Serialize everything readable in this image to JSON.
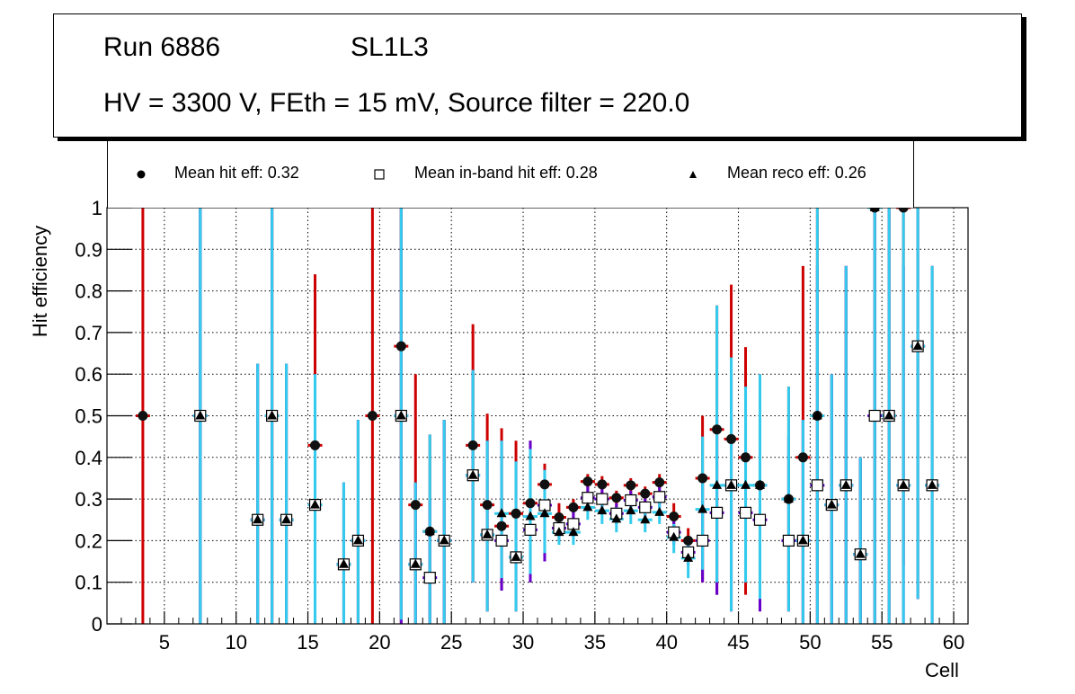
{
  "title": {
    "run": "Run 6886",
    "layer": "SL1L3",
    "conditions": "HV = 3300 V, FEth = 15 mV, Source filter = 220.0"
  },
  "legend": [
    {
      "name": "Mean hit  eff: 0.32",
      "marker": "filled-circle"
    },
    {
      "name": "Mean in-band hit eff: 0.28",
      "marker": "open-square"
    },
    {
      "name": "Mean reco eff: 0.26",
      "marker": "filled-triangle"
    }
  ],
  "colors": {
    "hit_error": "#cc0000",
    "inband_error": "#6600cc",
    "reco_error": "#33ccee",
    "marker": "#000000"
  },
  "chart_data": {
    "type": "scatter",
    "title": "Run 6886  SL1L3 — HV = 3300 V, FEth = 15 mV, Source filter = 220.0",
    "xlabel": "Cell",
    "ylabel": "Hit efficiency",
    "xlim": [
      1,
      61
    ],
    "ylim": [
      0,
      1
    ],
    "xticks": [
      5,
      10,
      15,
      20,
      25,
      30,
      35,
      40,
      45,
      50,
      55,
      60
    ],
    "yticks": [
      0,
      0.1,
      0.2,
      0.3,
      0.4,
      0.5,
      0.6,
      0.7,
      0.8,
      0.9,
      1
    ],
    "ytick_labels": [
      "0",
      "0.1",
      "0.2",
      "0.3",
      "0.4",
      "0.5",
      "0.6",
      "0.7",
      "0.8",
      "0.9",
      "1"
    ],
    "grid": true,
    "legend_position": "top",
    "series": [
      {
        "name": "Mean hit  eff: 0.32",
        "marker": "circle",
        "error_color": "#cc0000",
        "points": [
          {
            "x": 3.5,
            "y": 0.5,
            "lo": 0,
            "hi": 1
          },
          {
            "x": 7.5,
            "y": 0.5,
            "lo": 0,
            "hi": 1
          },
          {
            "x": 11.5,
            "y": 0.25,
            "lo": 0,
            "hi": 0.625
          },
          {
            "x": 12.5,
            "y": 0.5,
            "lo": 0,
            "hi": 1
          },
          {
            "x": 13.5,
            "y": 0.25,
            "lo": 0,
            "hi": 0.625
          },
          {
            "x": 15.5,
            "y": 0.429,
            "lo": 0.1,
            "hi": 0.84
          },
          {
            "x": 17.5,
            "y": 0.143,
            "lo": 0,
            "hi": 0.34
          },
          {
            "x": 18.5,
            "y": 0.2,
            "lo": 0,
            "hi": 0.49
          },
          {
            "x": 19.5,
            "y": 0.5,
            "lo": 0,
            "hi": 1
          },
          {
            "x": 21.5,
            "y": 0.667,
            "lo": 0,
            "hi": 1
          },
          {
            "x": 22.5,
            "y": 0.286,
            "lo": 0,
            "hi": 0.6
          },
          {
            "x": 23.5,
            "y": 0.222,
            "lo": 0,
            "hi": 0.455
          },
          {
            "x": 24.5,
            "y": 0.2,
            "lo": 0,
            "hi": 0.49
          },
          {
            "x": 26.5,
            "y": 0.429,
            "lo": 0.1,
            "hi": 0.72
          },
          {
            "x": 27.5,
            "y": 0.286,
            "lo": 0.03,
            "hi": 0.505
          },
          {
            "x": 28.5,
            "y": 0.235,
            "lo": 0.08,
            "hi": 0.47
          },
          {
            "x": 29.5,
            "y": 0.265,
            "lo": 0.03,
            "hi": 0.44
          },
          {
            "x": 30.5,
            "y": 0.29,
            "lo": 0.1,
            "hi": 0.44
          },
          {
            "x": 31.5,
            "y": 0.335,
            "lo": 0.15,
            "hi": 0.385
          },
          {
            "x": 32.5,
            "y": 0.256,
            "lo": 0.2,
            "hi": 0.29
          },
          {
            "x": 33.5,
            "y": 0.28,
            "lo": 0.24,
            "hi": 0.3
          },
          {
            "x": 34.5,
            "y": 0.342,
            "lo": 0.31,
            "hi": 0.36
          },
          {
            "x": 35.5,
            "y": 0.335,
            "lo": 0.3,
            "hi": 0.355
          },
          {
            "x": 36.5,
            "y": 0.303,
            "lo": 0.27,
            "hi": 0.32
          },
          {
            "x": 37.5,
            "y": 0.333,
            "lo": 0.3,
            "hi": 0.35
          },
          {
            "x": 38.5,
            "y": 0.313,
            "lo": 0.28,
            "hi": 0.33
          },
          {
            "x": 39.5,
            "y": 0.34,
            "lo": 0.31,
            "hi": 0.36
          },
          {
            "x": 40.5,
            "y": 0.258,
            "lo": 0.22,
            "hi": 0.29
          },
          {
            "x": 41.5,
            "y": 0.2,
            "lo": 0.15,
            "hi": 0.23
          },
          {
            "x": 42.5,
            "y": 0.35,
            "lo": 0.1,
            "hi": 0.5
          },
          {
            "x": 43.5,
            "y": 0.467,
            "lo": 0.07,
            "hi": 0.765
          },
          {
            "x": 44.5,
            "y": 0.444,
            "lo": 0.03,
            "hi": 0.815
          },
          {
            "x": 45.5,
            "y": 0.4,
            "lo": 0.07,
            "hi": 0.665
          },
          {
            "x": 46.5,
            "y": 0.333,
            "lo": 0.03,
            "hi": 0.6
          },
          {
            "x": 48.5,
            "y": 0.3,
            "lo": 0.03,
            "hi": 0.57
          },
          {
            "x": 49.5,
            "y": 0.4,
            "lo": 0,
            "hi": 0.86
          },
          {
            "x": 50.5,
            "y": 0.5,
            "lo": 0,
            "hi": 1
          },
          {
            "x": 51.5,
            "y": 0.286,
            "lo": 0,
            "hi": 0.6
          },
          {
            "x": 52.5,
            "y": 0.333,
            "lo": 0,
            "hi": 0.86
          },
          {
            "x": 53.5,
            "y": 0.167,
            "lo": 0,
            "hi": 0.4
          },
          {
            "x": 54.5,
            "y": 1.0,
            "lo": 0,
            "hi": 1
          },
          {
            "x": 55.5,
            "y": 0.5,
            "lo": 0,
            "hi": 1
          },
          {
            "x": 56.5,
            "y": 1.0,
            "lo": 0.14,
            "hi": 1
          },
          {
            "x": 57.5,
            "y": 0.667,
            "lo": 0.06,
            "hi": 1
          },
          {
            "x": 58.5,
            "y": 0.333,
            "lo": 0,
            "hi": 0.86
          }
        ]
      },
      {
        "name": "Mean in-band hit eff: 0.28",
        "marker": "square",
        "error_color": "#6600cc",
        "points": [
          {
            "x": 7.5,
            "y": 0.5,
            "lo": 0,
            "hi": 1
          },
          {
            "x": 11.5,
            "y": 0.25,
            "lo": 0,
            "hi": 0.625
          },
          {
            "x": 12.5,
            "y": 0.5,
            "lo": 0,
            "hi": 1
          },
          {
            "x": 13.5,
            "y": 0.25,
            "lo": 0,
            "hi": 0.625
          },
          {
            "x": 15.5,
            "y": 0.286,
            "lo": 0,
            "hi": 0.6
          },
          {
            "x": 17.5,
            "y": 0.143,
            "lo": 0,
            "hi": 0.34
          },
          {
            "x": 18.5,
            "y": 0.2,
            "lo": 0,
            "hi": 0.49
          },
          {
            "x": 21.5,
            "y": 0.5,
            "lo": 0,
            "hi": 1
          },
          {
            "x": 22.5,
            "y": 0.143,
            "lo": 0,
            "hi": 0.34
          },
          {
            "x": 23.5,
            "y": 0.111,
            "lo": 0,
            "hi": 0.3
          },
          {
            "x": 24.5,
            "y": 0.2,
            "lo": 0,
            "hi": 0.49
          },
          {
            "x": 26.5,
            "y": 0.357,
            "lo": 0.1,
            "hi": 0.61
          },
          {
            "x": 27.5,
            "y": 0.214,
            "lo": 0.03,
            "hi": 0.44
          },
          {
            "x": 28.5,
            "y": 0.2,
            "lo": 0.08,
            "hi": 0.44
          },
          {
            "x": 29.5,
            "y": 0.16,
            "lo": 0.03,
            "hi": 0.39
          },
          {
            "x": 30.5,
            "y": 0.226,
            "lo": 0.1,
            "hi": 0.44
          },
          {
            "x": 31.5,
            "y": 0.285,
            "lo": 0.15,
            "hi": 0.37
          },
          {
            "x": 32.5,
            "y": 0.23,
            "lo": 0.2,
            "hi": 0.26
          },
          {
            "x": 33.5,
            "y": 0.24,
            "lo": 0.21,
            "hi": 0.27
          },
          {
            "x": 34.5,
            "y": 0.303,
            "lo": 0.27,
            "hi": 0.33
          },
          {
            "x": 35.5,
            "y": 0.3,
            "lo": 0.27,
            "hi": 0.33
          },
          {
            "x": 36.5,
            "y": 0.265,
            "lo": 0.24,
            "hi": 0.29
          },
          {
            "x": 37.5,
            "y": 0.297,
            "lo": 0.27,
            "hi": 0.32
          },
          {
            "x": 38.5,
            "y": 0.28,
            "lo": 0.25,
            "hi": 0.31
          },
          {
            "x": 39.5,
            "y": 0.305,
            "lo": 0.28,
            "hi": 0.33
          },
          {
            "x": 40.5,
            "y": 0.22,
            "lo": 0.19,
            "hi": 0.25
          },
          {
            "x": 41.5,
            "y": 0.172,
            "lo": 0.14,
            "hi": 0.2
          },
          {
            "x": 42.5,
            "y": 0.2,
            "lo": 0.1,
            "hi": 0.35
          },
          {
            "x": 43.5,
            "y": 0.267,
            "lo": 0.07,
            "hi": 0.5
          },
          {
            "x": 44.5,
            "y": 0.333,
            "lo": 0.03,
            "hi": 0.6
          },
          {
            "x": 45.5,
            "y": 0.267,
            "lo": 0.1,
            "hi": 0.5
          },
          {
            "x": 46.5,
            "y": 0.25,
            "lo": 0.03,
            "hi": 0.5
          },
          {
            "x": 48.5,
            "y": 0.2,
            "lo": 0.03,
            "hi": 0.45
          },
          {
            "x": 49.5,
            "y": 0.2,
            "lo": 0,
            "hi": 0.49
          },
          {
            "x": 50.5,
            "y": 0.333,
            "lo": 0,
            "hi": 0.86
          },
          {
            "x": 51.5,
            "y": 0.286,
            "lo": 0,
            "hi": 0.6
          },
          {
            "x": 52.5,
            "y": 0.333,
            "lo": 0,
            "hi": 0.86
          },
          {
            "x": 53.5,
            "y": 0.167,
            "lo": 0,
            "hi": 0.4
          },
          {
            "x": 54.5,
            "y": 0.5,
            "lo": 0,
            "hi": 1
          },
          {
            "x": 55.5,
            "y": 0.5,
            "lo": 0,
            "hi": 1
          },
          {
            "x": 56.5,
            "y": 0.333,
            "lo": 0,
            "hi": 0.86
          },
          {
            "x": 57.5,
            "y": 0.667,
            "lo": 0.06,
            "hi": 1
          },
          {
            "x": 58.5,
            "y": 0.333,
            "lo": 0,
            "hi": 0.86
          }
        ]
      },
      {
        "name": "Mean reco eff: 0.26",
        "marker": "triangle",
        "error_color": "#33ccee",
        "points": [
          {
            "x": 7.5,
            "y": 0.5,
            "lo": 0,
            "hi": 1
          },
          {
            "x": 11.5,
            "y": 0.25,
            "lo": 0,
            "hi": 0.625
          },
          {
            "x": 12.5,
            "y": 0.5,
            "lo": 0,
            "hi": 1
          },
          {
            "x": 13.5,
            "y": 0.25,
            "lo": 0,
            "hi": 0.625
          },
          {
            "x": 15.5,
            "y": 0.286,
            "lo": 0,
            "hi": 0.6
          },
          {
            "x": 17.5,
            "y": 0.143,
            "lo": 0,
            "hi": 0.34
          },
          {
            "x": 18.5,
            "y": 0.2,
            "lo": 0,
            "hi": 0.49
          },
          {
            "x": 21.5,
            "y": 0.5,
            "lo": 0.01,
            "hi": 1
          },
          {
            "x": 22.5,
            "y": 0.143,
            "lo": 0,
            "hi": 0.34
          },
          {
            "x": 23.5,
            "y": 0.222,
            "lo": 0,
            "hi": 0.455
          },
          {
            "x": 24.5,
            "y": 0.2,
            "lo": 0,
            "hi": 0.49
          },
          {
            "x": 26.5,
            "y": 0.357,
            "lo": 0.1,
            "hi": 0.61
          },
          {
            "x": 27.5,
            "y": 0.214,
            "lo": 0.03,
            "hi": 0.44
          },
          {
            "x": 28.5,
            "y": 0.265,
            "lo": 0.11,
            "hi": 0.44
          },
          {
            "x": 29.5,
            "y": 0.16,
            "lo": 0.03,
            "hi": 0.39
          },
          {
            "x": 30.5,
            "y": 0.258,
            "lo": 0.12,
            "hi": 0.42
          },
          {
            "x": 31.5,
            "y": 0.265,
            "lo": 0.17,
            "hi": 0.37
          },
          {
            "x": 32.5,
            "y": 0.22,
            "lo": 0.19,
            "hi": 0.25
          },
          {
            "x": 33.5,
            "y": 0.22,
            "lo": 0.19,
            "hi": 0.25
          },
          {
            "x": 34.5,
            "y": 0.28,
            "lo": 0.25,
            "hi": 0.31
          },
          {
            "x": 35.5,
            "y": 0.272,
            "lo": 0.24,
            "hi": 0.3
          },
          {
            "x": 36.5,
            "y": 0.252,
            "lo": 0.22,
            "hi": 0.28
          },
          {
            "x": 37.5,
            "y": 0.272,
            "lo": 0.24,
            "hi": 0.3
          },
          {
            "x": 38.5,
            "y": 0.25,
            "lo": 0.22,
            "hi": 0.28
          },
          {
            "x": 39.5,
            "y": 0.268,
            "lo": 0.24,
            "hi": 0.3
          },
          {
            "x": 40.5,
            "y": 0.208,
            "lo": 0.17,
            "hi": 0.24
          },
          {
            "x": 41.5,
            "y": 0.158,
            "lo": 0.11,
            "hi": 0.2
          },
          {
            "x": 42.5,
            "y": 0.275,
            "lo": 0.13,
            "hi": 0.45
          },
          {
            "x": 43.5,
            "y": 0.333,
            "lo": 0.1,
            "hi": 0.765
          },
          {
            "x": 44.5,
            "y": 0.333,
            "lo": 0.03,
            "hi": 0.64
          },
          {
            "x": 45.5,
            "y": 0.333,
            "lo": 0.1,
            "hi": 0.57
          },
          {
            "x": 46.5,
            "y": 0.333,
            "lo": 0.06,
            "hi": 0.6
          },
          {
            "x": 48.5,
            "y": 0.3,
            "lo": 0.03,
            "hi": 0.57
          },
          {
            "x": 49.5,
            "y": 0.2,
            "lo": 0,
            "hi": 0.49
          },
          {
            "x": 50.5,
            "y": 0.5,
            "lo": 0,
            "hi": 1
          },
          {
            "x": 51.5,
            "y": 0.286,
            "lo": 0,
            "hi": 0.6
          },
          {
            "x": 52.5,
            "y": 0.333,
            "lo": 0,
            "hi": 0.86
          },
          {
            "x": 53.5,
            "y": 0.167,
            "lo": 0,
            "hi": 0.4
          },
          {
            "x": 54.5,
            "y": 1.0,
            "lo": 0,
            "hi": 1
          },
          {
            "x": 55.5,
            "y": 0.5,
            "lo": 0,
            "hi": 1
          },
          {
            "x": 56.5,
            "y": 0.333,
            "lo": 0,
            "hi": 1
          },
          {
            "x": 57.5,
            "y": 0.667,
            "lo": 0.06,
            "hi": 1
          },
          {
            "x": 58.5,
            "y": 0.333,
            "lo": 0,
            "hi": 0.86
          }
        ]
      }
    ]
  }
}
